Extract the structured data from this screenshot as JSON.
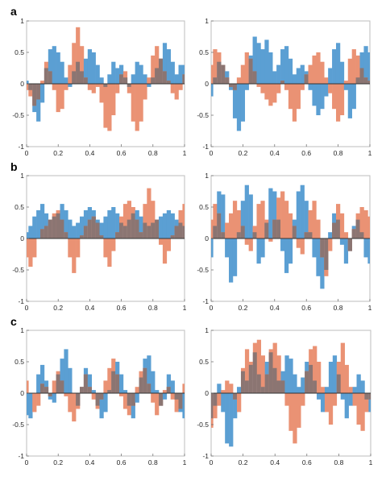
{
  "panel_labels": [
    "a",
    "b",
    "c"
  ],
  "colors": {
    "series_a": "#5b9fd3",
    "series_b": "#ea9274",
    "overlap": "#8b7572",
    "axes": "#bdbdbd",
    "zero_line": "#333333"
  },
  "chart_data": [
    {
      "type": "bar",
      "panel": "a",
      "side": "left",
      "xlim": [
        0,
        1
      ],
      "ylim": [
        -1,
        1
      ],
      "xticks": [
        "0",
        "0.2",
        "0.4",
        "0.6",
        "0.8",
        "1"
      ],
      "yticks": [
        "1",
        "0.5",
        "0",
        "-0.5",
        "-1"
      ],
      "grid": false,
      "x": [
        0.0,
        0.025,
        0.05,
        0.075,
        0.1,
        0.125,
        0.15,
        0.175,
        0.2,
        0.225,
        0.25,
        0.275,
        0.3,
        0.325,
        0.35,
        0.375,
        0.4,
        0.425,
        0.45,
        0.475,
        0.5,
        0.525,
        0.55,
        0.575,
        0.6,
        0.625,
        0.65,
        0.675,
        0.7,
        0.725,
        0.75,
        0.775,
        0.8,
        0.825,
        0.85,
        0.875,
        0.9,
        0.925,
        0.95,
        0.975,
        1.0
      ],
      "series": [
        {
          "values": [
            0.05,
            -0.1,
            -0.45,
            -0.6,
            -0.3,
            0.25,
            0.55,
            0.6,
            0.5,
            0.35,
            0.1,
            -0.05,
            0.2,
            0.35,
            0.2,
            0.4,
            0.55,
            0.5,
            0.3,
            0.1,
            -0.05,
            0.15,
            0.35,
            0.25,
            0.3,
            0.1,
            -0.05,
            0.15,
            0.35,
            0.3,
            0.15,
            -0.05,
            0.1,
            0.25,
            0.4,
            0.65,
            0.55,
            0.35,
            0.15,
            0.3,
            0.3
          ]
        },
        {
          "values": [
            -0.1,
            -0.2,
            -0.35,
            -0.25,
            0.05,
            0.35,
            0.2,
            -0.1,
            -0.45,
            -0.4,
            -0.1,
            0.3,
            0.65,
            0.9,
            0.6,
            0.1,
            -0.1,
            -0.15,
            -0.05,
            -0.3,
            -0.7,
            -0.75,
            -0.5,
            -0.15,
            0.15,
            0.2,
            -0.15,
            -0.6,
            -0.75,
            -0.6,
            -0.25,
            0.1,
            0.45,
            0.6,
            0.4,
            0.2,
            0.05,
            -0.15,
            -0.25,
            -0.1,
            0.15
          ]
        }
      ]
    },
    {
      "type": "bar",
      "panel": "a",
      "side": "right",
      "xlim": [
        0,
        1
      ],
      "ylim": [
        -1,
        1
      ],
      "xticks": [
        "0",
        "0.2",
        "0.4",
        "0.6",
        "0.8",
        "1"
      ],
      "yticks": [
        "1",
        "0.5",
        "0",
        "-0.5",
        "-1"
      ],
      "grid": false,
      "x": [
        0.0,
        0.025,
        0.05,
        0.075,
        0.1,
        0.125,
        0.15,
        0.175,
        0.2,
        0.225,
        0.25,
        0.275,
        0.3,
        0.325,
        0.35,
        0.375,
        0.4,
        0.425,
        0.45,
        0.475,
        0.5,
        0.525,
        0.55,
        0.575,
        0.6,
        0.625,
        0.65,
        0.675,
        0.7,
        0.725,
        0.75,
        0.775,
        0.8,
        0.825,
        0.85,
        0.875,
        0.9,
        0.925,
        0.95,
        0.975,
        1.0
      ],
      "series": [
        {
          "values": [
            -0.2,
            0.1,
            0.35,
            0.3,
            0.2,
            -0.1,
            -0.55,
            -0.75,
            -0.6,
            -0.1,
            0.45,
            0.75,
            0.65,
            0.55,
            0.7,
            0.5,
            0.2,
            0.3,
            0.55,
            0.6,
            0.4,
            0.15,
            0.25,
            0.3,
            0.2,
            -0.1,
            -0.35,
            -0.5,
            -0.4,
            -0.2,
            0.25,
            0.55,
            0.65,
            0.35,
            -0.1,
            -0.55,
            -0.4,
            0.1,
            0.5,
            0.6,
            0.5
          ]
        },
        {
          "values": [
            0.3,
            0.55,
            0.5,
            0.3,
            0.1,
            -0.05,
            -0.1,
            0.1,
            0.3,
            0.5,
            0.4,
            0.2,
            -0.05,
            -0.15,
            -0.25,
            -0.35,
            -0.3,
            -0.15,
            0.05,
            -0.1,
            -0.4,
            -0.6,
            -0.4,
            -0.1,
            0.15,
            0.3,
            0.45,
            0.5,
            0.35,
            0.1,
            -0.15,
            -0.4,
            -0.6,
            -0.5,
            0.05,
            0.4,
            0.55,
            0.45,
            0.25,
            0.1,
            0.05
          ]
        }
      ]
    },
    {
      "type": "bar",
      "panel": "b",
      "side": "left",
      "xlim": [
        0,
        1
      ],
      "ylim": [
        -1,
        1
      ],
      "xticks": [
        "0",
        "0.2",
        "0.4",
        "0.6",
        "0.8",
        "1"
      ],
      "yticks": [
        "1",
        "0.5",
        "0",
        "-0.5",
        "-1"
      ],
      "grid": false,
      "x": [
        0.0,
        0.025,
        0.05,
        0.075,
        0.1,
        0.125,
        0.15,
        0.175,
        0.2,
        0.225,
        0.25,
        0.275,
        0.3,
        0.325,
        0.35,
        0.375,
        0.4,
        0.425,
        0.45,
        0.475,
        0.5,
        0.525,
        0.55,
        0.575,
        0.6,
        0.625,
        0.65,
        0.675,
        0.7,
        0.725,
        0.75,
        0.775,
        0.8,
        0.825,
        0.85,
        0.875,
        0.9,
        0.925,
        0.95,
        0.975,
        1.0
      ],
      "series": [
        {
          "values": [
            0.1,
            0.2,
            0.35,
            0.45,
            0.55,
            0.4,
            0.3,
            0.35,
            0.4,
            0.55,
            0.45,
            0.3,
            0.2,
            0.25,
            0.35,
            0.45,
            0.5,
            0.45,
            0.3,
            0.25,
            0.35,
            0.45,
            0.5,
            0.4,
            0.25,
            0.2,
            0.3,
            0.4,
            0.45,
            0.35,
            0.25,
            0.2,
            0.25,
            0.3,
            0.35,
            0.4,
            0.45,
            0.4,
            0.3,
            0.25,
            0.2
          ]
        },
        {
          "values": [
            -0.3,
            -0.45,
            -0.3,
            0.0,
            0.15,
            0.2,
            0.3,
            0.4,
            0.45,
            0.3,
            0.1,
            -0.3,
            -0.55,
            -0.3,
            0.05,
            0.2,
            0.3,
            0.35,
            0.25,
            0.05,
            -0.3,
            -0.45,
            -0.2,
            0.1,
            0.35,
            0.55,
            0.6,
            0.5,
            0.3,
            0.1,
            0.55,
            0.8,
            0.6,
            0.3,
            -0.1,
            -0.4,
            -0.2,
            0.05,
            0.2,
            0.45,
            0.55
          ]
        }
      ]
    },
    {
      "type": "bar",
      "panel": "b",
      "side": "right",
      "xlim": [
        0,
        1
      ],
      "ylim": [
        -1,
        1
      ],
      "xticks": [
        "0",
        "0.2",
        "0.4",
        "0.6",
        "0.8",
        "1"
      ],
      "yticks": [
        "1",
        "0.5",
        "0",
        "-0.5",
        "-1"
      ],
      "grid": false,
      "x": [
        0.0,
        0.025,
        0.05,
        0.075,
        0.1,
        0.125,
        0.15,
        0.175,
        0.2,
        0.225,
        0.25,
        0.275,
        0.3,
        0.325,
        0.35,
        0.375,
        0.4,
        0.425,
        0.45,
        0.475,
        0.5,
        0.525,
        0.55,
        0.575,
        0.6,
        0.625,
        0.65,
        0.675,
        0.7,
        0.725,
        0.75,
        0.775,
        0.8,
        0.825,
        0.85,
        0.875,
        0.9,
        0.925,
        0.95,
        0.975,
        1.0
      ],
      "series": [
        {
          "values": [
            -0.3,
            0.2,
            0.75,
            0.7,
            -0.3,
            -0.7,
            -0.6,
            0.1,
            0.6,
            0.85,
            0.7,
            0.1,
            -0.4,
            -0.3,
            0.25,
            0.8,
            0.75,
            0.3,
            -0.2,
            -0.55,
            -0.4,
            0.3,
            0.75,
            0.85,
            0.6,
            0.1,
            -0.3,
            -0.6,
            -0.8,
            -0.5,
            0.1,
            0.4,
            0.3,
            -0.1,
            -0.4,
            -0.2,
            0.2,
            0.3,
            0.1,
            -0.3,
            -0.4
          ]
        },
        {
          "values": [
            0.3,
            0.55,
            0.4,
            0.1,
            0.25,
            0.4,
            0.6,
            0.45,
            0.2,
            -0.1,
            -0.2,
            0.2,
            0.55,
            0.6,
            0.3,
            -0.05,
            0.3,
            0.65,
            0.75,
            0.6,
            0.4,
            0.2,
            -0.15,
            -0.25,
            0.1,
            0.45,
            0.6,
            0.3,
            -0.3,
            -0.6,
            -0.2,
            0.25,
            0.55,
            0.4,
            0.1,
            -0.2,
            0.15,
            0.4,
            0.5,
            0.45,
            0.35
          ]
        }
      ]
    },
    {
      "type": "bar",
      "panel": "c",
      "side": "left",
      "xlim": [
        0,
        1
      ],
      "ylim": [
        -1,
        1
      ],
      "xticks": [
        "0",
        "0.2",
        "0.4",
        "0.6",
        "0.8",
        "1"
      ],
      "yticks": [
        "1",
        "0.5",
        "0",
        "-0.5",
        "-1"
      ],
      "grid": false,
      "x": [
        0.0,
        0.025,
        0.05,
        0.075,
        0.1,
        0.125,
        0.15,
        0.175,
        0.2,
        0.225,
        0.25,
        0.275,
        0.3,
        0.325,
        0.35,
        0.375,
        0.4,
        0.425,
        0.45,
        0.475,
        0.5,
        0.525,
        0.55,
        0.575,
        0.6,
        0.625,
        0.65,
        0.675,
        0.7,
        0.725,
        0.75,
        0.775,
        0.8,
        0.825,
        0.85,
        0.875,
        0.9,
        0.925,
        0.95,
        0.975,
        1.0
      ],
      "series": [
        {
          "values": [
            -0.35,
            -0.4,
            0.0,
            0.3,
            0.45,
            0.2,
            -0.1,
            -0.15,
            0.3,
            0.55,
            0.7,
            0.4,
            0.0,
            -0.2,
            0.1,
            0.4,
            0.3,
            0.05,
            -0.2,
            -0.4,
            -0.3,
            0.05,
            0.35,
            0.5,
            0.3,
            0.05,
            -0.2,
            -0.4,
            -0.15,
            0.25,
            0.55,
            0.6,
            0.35,
            0.05,
            -0.2,
            -0.1,
            0.3,
            0.2,
            -0.1,
            -0.3,
            -0.4
          ]
        },
        {
          "values": [
            0.2,
            0.0,
            -0.3,
            -0.2,
            0.15,
            0.1,
            -0.05,
            0.2,
            0.35,
            0.2,
            -0.05,
            -0.3,
            -0.45,
            -0.25,
            0.1,
            0.3,
            0.1,
            -0.1,
            -0.25,
            -0.1,
            0.2,
            0.4,
            0.55,
            0.3,
            -0.05,
            -0.25,
            -0.35,
            -0.2,
            0.1,
            0.35,
            0.4,
            0.15,
            -0.15,
            -0.35,
            -0.2,
            0.05,
            0.1,
            -0.1,
            -0.3,
            -0.25,
            0.15
          ]
        }
      ]
    },
    {
      "type": "bar",
      "panel": "c",
      "side": "right",
      "xlim": [
        0,
        1
      ],
      "ylim": [
        -1,
        1
      ],
      "xticks": [
        "0",
        "0.2",
        "0.4",
        "0.6",
        "0.8",
        "1"
      ],
      "yticks": [
        "1",
        "0.5",
        "0",
        "-0.5",
        "-1"
      ],
      "grid": false,
      "x": [
        0.0,
        0.025,
        0.05,
        0.075,
        0.1,
        0.125,
        0.15,
        0.175,
        0.2,
        0.225,
        0.25,
        0.275,
        0.3,
        0.325,
        0.35,
        0.375,
        0.4,
        0.425,
        0.45,
        0.475,
        0.5,
        0.525,
        0.55,
        0.575,
        0.6,
        0.625,
        0.65,
        0.675,
        0.7,
        0.725,
        0.75,
        0.775,
        0.8,
        0.825,
        0.85,
        0.875,
        0.9,
        0.925,
        0.95,
        0.975,
        1.0
      ],
      "series": [
        {
          "values": [
            -0.4,
            -0.2,
            0.15,
            -0.3,
            -0.8,
            -0.85,
            -0.4,
            0.1,
            0.35,
            0.2,
            0.45,
            0.65,
            0.3,
            0.1,
            0.5,
            0.65,
            0.4,
            0.2,
            0.35,
            0.6,
            0.55,
            0.3,
            0.1,
            0.25,
            0.5,
            0.45,
            0.2,
            -0.1,
            -0.3,
            0.1,
            0.5,
            0.6,
            0.3,
            -0.1,
            -0.4,
            -0.2,
            0.1,
            0.3,
            0.2,
            -0.1,
            -0.3
          ]
        },
        {
          "values": [
            -0.55,
            -0.4,
            -0.2,
            0.05,
            0.2,
            0.15,
            -0.1,
            -0.3,
            0.4,
            0.7,
            0.5,
            0.8,
            0.85,
            0.6,
            0.3,
            0.7,
            0.8,
            0.6,
            0.2,
            -0.2,
            -0.6,
            -0.8,
            -0.55,
            -0.2,
            0.35,
            0.7,
            0.75,
            0.5,
            0.1,
            -0.3,
            -0.5,
            -0.2,
            0.5,
            0.8,
            0.45,
            0.1,
            -0.2,
            -0.5,
            -0.6,
            -0.3,
            -0.1
          ]
        }
      ]
    }
  ]
}
